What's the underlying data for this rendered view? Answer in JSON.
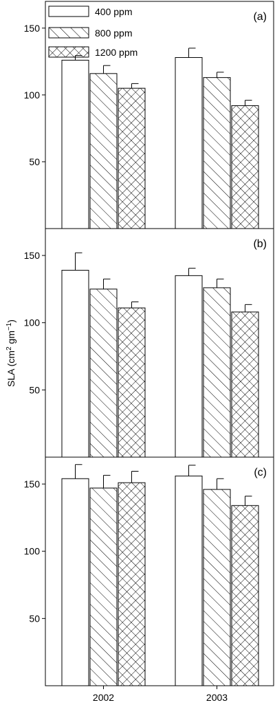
{
  "chart_data": {
    "type": "bar",
    "ylabel": "SLA (cm",
    "ylabel_sup": "2",
    "ylabel_mid": " gm",
    "ylabel_sup2": "−1",
    "ylabel_end": ")",
    "categories": [
      "2002",
      "2003"
    ],
    "legend": [
      {
        "name": "400 ppm",
        "pattern": "open"
      },
      {
        "name": "800 ppm",
        "pattern": "diagonal"
      },
      {
        "name": "1200 ppm",
        "pattern": "crosshatch"
      }
    ],
    "ylim": [
      0,
      170
    ],
    "yticks": [
      50,
      100,
      150
    ],
    "panels": [
      {
        "label": "(a)",
        "series": [
          {
            "name": "400 ppm",
            "values": [
              126,
              128
            ],
            "errors": [
              3.5,
              7
            ]
          },
          {
            "name": "800 ppm",
            "values": [
              116,
              113
            ],
            "errors": [
              6,
              4
            ]
          },
          {
            "name": "1200 ppm",
            "values": [
              105,
              92
            ],
            "errors": [
              3.5,
              4
            ]
          }
        ]
      },
      {
        "label": "(b)",
        "series": [
          {
            "name": "400 ppm",
            "values": [
              139,
              135
            ],
            "errors": [
              13,
              5.5
            ]
          },
          {
            "name": "800 ppm",
            "values": [
              125,
              126
            ],
            "errors": [
              7.5,
              6.5
            ]
          },
          {
            "name": "1200 ppm",
            "values": [
              111,
              108
            ],
            "errors": [
              4.5,
              5.5
            ]
          }
        ]
      },
      {
        "label": "(c)",
        "series": [
          {
            "name": "400 ppm",
            "values": [
              154,
              156
            ],
            "errors": [
              10.5,
              8
            ]
          },
          {
            "name": "800 ppm",
            "values": [
              147,
              146
            ],
            "errors": [
              9.5,
              8
            ]
          },
          {
            "name": "1200 ppm",
            "values": [
              151,
              134
            ],
            "errors": [
              8.5,
              7
            ]
          }
        ]
      }
    ]
  }
}
